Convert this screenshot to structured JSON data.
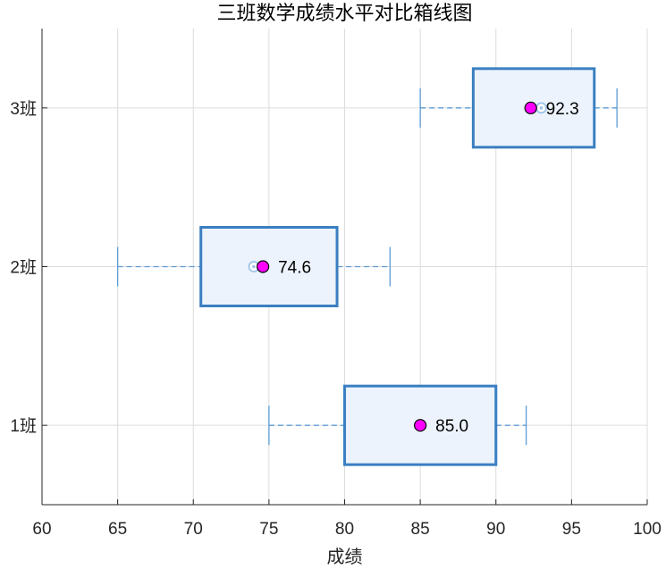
{
  "chart_data": {
    "type": "boxplot",
    "orientation": "horizontal",
    "title": "三班数学成绩水平对比箱线图",
    "xlabel": "成绩",
    "ylabel": "",
    "xlim": [
      60,
      100
    ],
    "xticks": [
      60,
      65,
      70,
      75,
      80,
      85,
      90,
      95,
      100
    ],
    "grid": true,
    "categories": [
      "1班",
      "2班",
      "3班"
    ],
    "boxes": [
      {
        "category": "1班",
        "whisker_low": 75,
        "q1": 80,
        "median": 85,
        "q3": 90,
        "whisker_high": 92,
        "mean": 85.0,
        "mean_label": "85.0"
      },
      {
        "category": "2班",
        "whisker_low": 65,
        "q1": 70.5,
        "median": 74,
        "q3": 79.5,
        "whisker_high": 83,
        "mean": 74.6,
        "mean_label": "74.6"
      },
      {
        "category": "3班",
        "whisker_low": 85,
        "q1": 88.5,
        "median": 93,
        "q3": 96.5,
        "whisker_high": 98,
        "mean": 92.3,
        "mean_label": "92.3"
      }
    ],
    "colors": {
      "box_edge": "#3a7fc1",
      "box_fill": "#ecf3fc",
      "whisker": "#5b9bd5",
      "median_marker": "#9ec4e8",
      "mean_marker": "#ff00ff",
      "grid": "#dcdcdc",
      "axis": "#262626"
    }
  }
}
